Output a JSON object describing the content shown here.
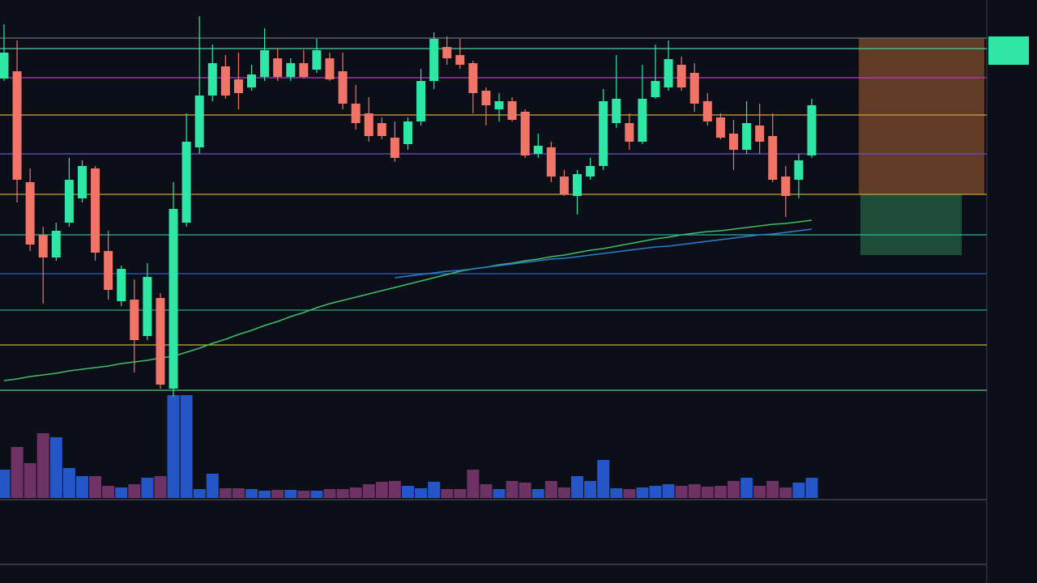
{
  "chart_data": {
    "type": "candlestick",
    "ylim": [
      0,
      615
    ],
    "volume_ylim": [
      0,
      130
    ],
    "up_color": "#2ee6a6",
    "down_color": "#f07468",
    "volume_up_color": "#2456c8",
    "volume_down_color": "#6e3264",
    "open": [
      518,
      527,
      390,
      325,
      297,
      340,
      370,
      407,
      305,
      243,
      245,
      200,
      247,
      135,
      340,
      433,
      497,
      533,
      517,
      507,
      520,
      543,
      520,
      537,
      529,
      543,
      527,
      487,
      475,
      463,
      445,
      437,
      465,
      515,
      557,
      547,
      537,
      503,
      480,
      490,
      477,
      425,
      433,
      397,
      373,
      397,
      410,
      463,
      463,
      440,
      495,
      507,
      535,
      525,
      490,
      470,
      450,
      430,
      460,
      447,
      397,
      393,
      423
    ],
    "high": [
      585,
      565,
      407,
      335,
      340,
      420,
      417,
      410,
      330,
      287,
      270,
      290,
      253,
      390,
      475,
      595,
      560,
      547,
      550,
      535,
      580,
      555,
      543,
      553,
      567,
      550,
      550,
      510,
      495,
      470,
      465,
      470,
      530,
      575,
      570,
      567,
      540,
      507,
      500,
      495,
      480,
      450,
      440,
      405,
      405,
      420,
      505,
      547,
      475,
      535,
      560,
      565,
      545,
      537,
      500,
      475,
      467,
      490,
      487,
      475,
      410,
      425,
      493
    ],
    "low": [
      515,
      365,
      305,
      240,
      293,
      335,
      365,
      293,
      245,
      237,
      155,
      195,
      135,
      125,
      335,
      425,
      490,
      493,
      480,
      503,
      515,
      515,
      515,
      518,
      525,
      515,
      480,
      455,
      440,
      443,
      415,
      430,
      460,
      505,
      535,
      530,
      475,
      460,
      465,
      465,
      420,
      420,
      390,
      373,
      350,
      393,
      405,
      457,
      430,
      437,
      493,
      503,
      503,
      477,
      460,
      443,
      405,
      425,
      425,
      390,
      347,
      370,
      420
    ],
    "close": [
      550,
      393,
      313,
      297,
      330,
      393,
      410,
      303,
      257,
      283,
      195,
      273,
      140,
      357,
      440,
      497,
      537,
      497,
      500,
      523,
      553,
      520,
      537,
      520,
      553,
      517,
      487,
      463,
      447,
      447,
      420,
      465,
      515,
      567,
      543,
      535,
      500,
      485,
      490,
      467,
      423,
      435,
      397,
      375,
      400,
      410,
      490,
      493,
      440,
      493,
      515,
      542,
      507,
      487,
      465,
      445,
      430,
      463,
      440,
      393,
      373,
      417,
      485
    ],
    "volume": [
      35,
      63,
      43,
      80,
      75,
      37,
      27,
      27,
      15,
      13,
      17,
      25,
      27,
      127,
      127,
      11,
      30,
      12,
      12,
      11,
      9,
      10,
      10,
      9,
      9,
      11,
      11,
      13,
      17,
      20,
      21,
      15,
      12,
      20,
      11,
      11,
      35,
      17,
      11,
      21,
      19,
      11,
      21,
      13,
      27,
      21,
      47,
      12,
      11,
      13,
      15,
      17,
      15,
      17,
      14,
      15,
      21,
      25,
      15,
      21,
      13,
      19,
      25
    ],
    "series": [
      {
        "color": "#3fbf6a",
        "values": [
          145,
          147,
          150,
          152,
          154,
          157,
          159,
          161,
          163,
          166,
          168,
          170,
          173,
          175,
          180,
          185,
          191,
          196,
          202,
          207,
          213,
          218,
          224,
          229,
          235,
          240,
          244,
          248,
          252,
          256,
          260,
          264,
          268,
          272,
          276,
          280,
          283,
          285,
          288,
          290,
          293,
          295,
          298,
          300,
          303,
          306,
          308,
          311,
          314,
          317,
          320,
          322,
          325,
          327,
          329,
          330,
          332,
          334,
          336,
          338,
          339,
          341,
          343
        ]
      },
      {
        "color": "#2a7fd0",
        "values": [
          null,
          null,
          null,
          null,
          null,
          null,
          null,
          null,
          null,
          null,
          null,
          null,
          null,
          null,
          null,
          null,
          null,
          null,
          null,
          null,
          null,
          null,
          null,
          null,
          null,
          null,
          null,
          null,
          null,
          null,
          272,
          274,
          276,
          278,
          280,
          281,
          283,
          285,
          287,
          289,
          291,
          293,
          295,
          296,
          298,
          300,
          302,
          304,
          306,
          308,
          310,
          311,
          313,
          315,
          317,
          319,
          321,
          323,
          325,
          326,
          328,
          330,
          332
        ]
      }
    ],
    "levels": [
      {
        "value": 568,
        "color": "#6b6f7a"
      },
      {
        "value": 555,
        "color": "#4fd1a5"
      },
      {
        "value": 519,
        "color": "#b43cc0"
      },
      {
        "value": 473,
        "color": "#d9a040"
      },
      {
        "value": 425,
        "color": "#6a4fd0"
      },
      {
        "value": 375,
        "color": "#c8a030"
      },
      {
        "value": 325,
        "color": "#2fb0a0"
      },
      {
        "value": 277,
        "color": "#2060d0"
      },
      {
        "value": 232,
        "color": "#40a080"
      },
      {
        "value": 189,
        "color": "#c8b040"
      },
      {
        "value": 133,
        "color": "#60c080"
      }
    ]
  }
}
